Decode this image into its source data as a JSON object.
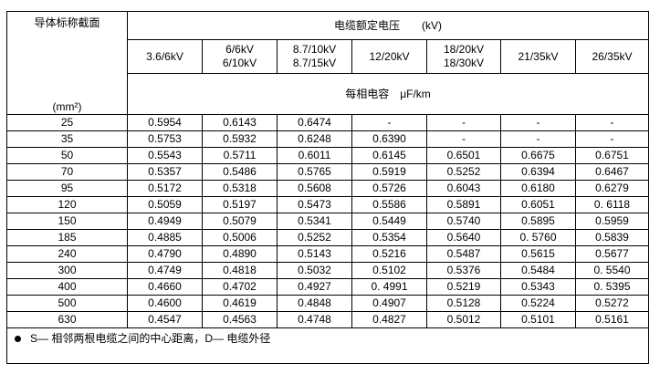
{
  "header": {
    "section_label": "导体标称截面",
    "section_unit": "(mm²)",
    "voltage_title": "电缆额定电压　　(kV)",
    "capacity_title": "每相电容　μF/km",
    "columns": [
      [
        "3.6/6kV"
      ],
      [
        "6/6kV",
        "6/10kV"
      ],
      [
        "8.7/10kV",
        "8.7/15kV"
      ],
      [
        "12/20kV"
      ],
      [
        "18/20kV",
        "18/30kV"
      ],
      [
        "21/35kV"
      ],
      [
        "26/35kV"
      ]
    ]
  },
  "rows": [
    [
      "25",
      "0.5954",
      "0.6143",
      "0.6474",
      "-",
      "-",
      "-",
      "-"
    ],
    [
      "35",
      "0.5753",
      "0.5932",
      "0.6248",
      "0.6390",
      "-",
      "-",
      "-"
    ],
    [
      "50",
      "0.5543",
      "0.5711",
      "0.6011",
      "0.6145",
      "0.6501",
      "0.6675",
      "0.6751"
    ],
    [
      "70",
      "0.5357",
      "0.5486",
      "0.5765",
      "0.5919",
      "0.5252",
      "0.6394",
      "0.6467"
    ],
    [
      "95",
      "0.5172",
      "0.5318",
      "0.5608",
      "0.5726",
      "0.6043",
      "0.6180",
      "0.6279"
    ],
    [
      "120",
      "0.5059",
      "0.5197",
      "0.5473",
      "0.5586",
      "0.5891",
      "0.6051",
      "0. 6118"
    ],
    [
      "150",
      "0.4949",
      "0.5079",
      "0.5341",
      "0.5449",
      "0.5740",
      "0.5895",
      "0.5959"
    ],
    [
      "185",
      "0.4885",
      "0.5006",
      "0.5252",
      "0.5354",
      "0.5640",
      "0. 5760",
      "0.5839"
    ],
    [
      "240",
      "0.4790",
      "0.4890",
      "0.5143",
      "0.5216",
      "0.5487",
      "0.5615",
      "0.5677"
    ],
    [
      "300",
      "0.4749",
      "0.4818",
      "0.5032",
      "0.5102",
      "0.5376",
      "0.5484",
      "0. 5540"
    ],
    [
      "400",
      "0.4660",
      "0.4702",
      "0.4927",
      "0. 4991",
      "0.5219",
      "0.5343",
      "0. 5395"
    ],
    [
      "500",
      "0.4600",
      "0.4619",
      "0.4848",
      "0.4907",
      "0.5128",
      "0.5224",
      "0.5272"
    ],
    [
      "630",
      "0.4547",
      "0.4563",
      "0.4748",
      "0.4827",
      "0.5012",
      "0.5101",
      "0.5161"
    ]
  ],
  "footnote": "S— 相邻两根电缆之间的中心距离，D— 电缆外径"
}
